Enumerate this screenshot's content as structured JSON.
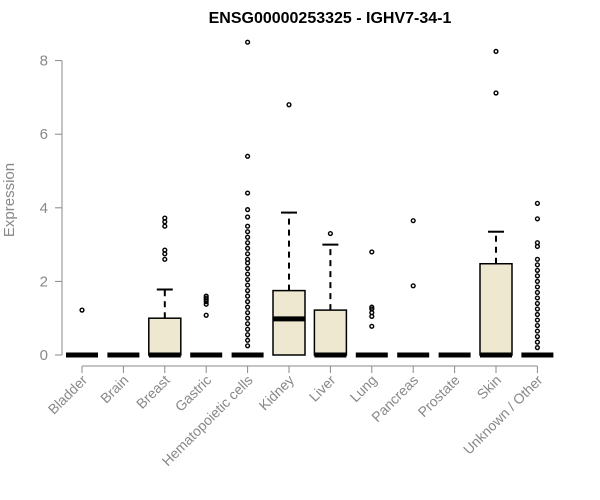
{
  "chart_data": {
    "type": "box",
    "title": "ENSG00000253325 - IGHV7-34-1",
    "ylabel": "Expression",
    "xlabel": "",
    "ylim": [
      0,
      8.5
    ],
    "yticks": [
      0,
      2,
      4,
      6,
      8
    ],
    "grid": false,
    "box_fill": "#ede8cf",
    "categories": [
      "Bladder",
      "Brain",
      "Breast",
      "Gastric",
      "Hematopoietic cells",
      "Kidney",
      "Liver",
      "Lung",
      "Pancreas",
      "Prostate",
      "Skin",
      "Unknown / Other"
    ],
    "boxes": [
      {
        "q1": 0,
        "median": 0,
        "q3": 0,
        "whisker_low": 0,
        "whisker_high": 0,
        "outliers": [
          1.22
        ]
      },
      {
        "q1": 0,
        "median": 0,
        "q3": 0,
        "whisker_low": 0,
        "whisker_high": 0,
        "outliers": []
      },
      {
        "q1": 0,
        "median": 0,
        "q3": 1.0,
        "whisker_low": 0,
        "whisker_high": 1.78,
        "outliers": [
          2.6,
          2.75,
          2.85,
          3.5,
          3.62,
          3.72
        ]
      },
      {
        "q1": 0,
        "median": 0,
        "q3": 0,
        "whisker_low": 0,
        "whisker_high": 0,
        "outliers": [
          1.08,
          1.38,
          1.45,
          1.5,
          1.55,
          1.6
        ]
      },
      {
        "q1": 0,
        "median": 0,
        "q3": 0,
        "whisker_low": 0,
        "whisker_high": 0,
        "outliers": [
          0.25,
          0.4,
          0.55,
          0.7,
          0.85,
          1.0,
          1.15,
          1.3,
          1.45,
          1.6,
          1.75,
          1.9,
          2.05,
          2.2,
          2.35,
          2.5,
          2.6,
          2.75,
          2.9,
          3.05,
          3.2,
          3.35,
          3.5,
          3.75,
          3.95,
          4.4,
          5.4,
          8.5
        ]
      },
      {
        "q1": 0,
        "median": 0.98,
        "q3": 1.75,
        "whisker_low": 0,
        "whisker_high": 3.87,
        "outliers": [
          6.8
        ]
      },
      {
        "q1": 0,
        "median": 0,
        "q3": 1.22,
        "whisker_low": 0,
        "whisker_high": 3.0,
        "outliers": [
          3.3
        ]
      },
      {
        "q1": 0,
        "median": 0,
        "q3": 0,
        "whisker_low": 0,
        "whisker_high": 0,
        "outliers": [
          0.78,
          1.05,
          1.15,
          1.25,
          1.3,
          2.8
        ]
      },
      {
        "q1": 0,
        "median": 0,
        "q3": 0,
        "whisker_low": 0,
        "whisker_high": 0,
        "outliers": [
          1.88,
          3.65
        ]
      },
      {
        "q1": 0,
        "median": 0,
        "q3": 0,
        "whisker_low": 0,
        "whisker_high": 0,
        "outliers": []
      },
      {
        "q1": 0,
        "median": 0,
        "q3": 2.48,
        "whisker_low": 0,
        "whisker_high": 3.35,
        "outliers": [
          7.12,
          8.25
        ]
      },
      {
        "q1": 0,
        "median": 0,
        "q3": 0,
        "whisker_low": 0,
        "whisker_high": 0,
        "outliers": [
          0.2,
          0.35,
          0.5,
          0.65,
          0.8,
          0.95,
          1.1,
          1.25,
          1.4,
          1.55,
          1.7,
          1.85,
          2.0,
          2.15,
          2.3,
          2.45,
          2.6,
          2.95,
          3.05,
          3.7,
          4.12
        ]
      }
    ]
  }
}
